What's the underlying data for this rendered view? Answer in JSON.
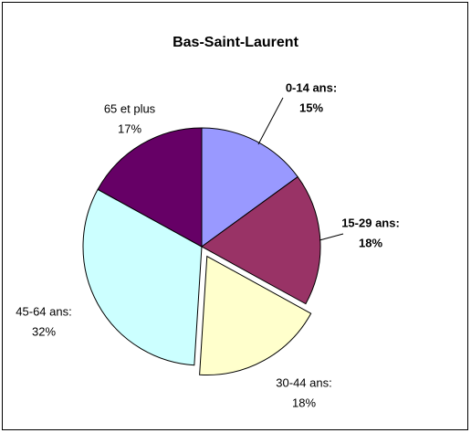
{
  "chart_data": {
    "type": "pie",
    "title": "Bas-Saint-Laurent",
    "categories": [
      "0-14 ans:",
      "15-29 ans:",
      "30-44 ans:",
      "45-64 ans:",
      "65 et plus"
    ],
    "values": [
      15,
      18,
      18,
      32,
      17
    ],
    "value_labels": [
      "15%",
      "18%",
      "18%",
      "32%",
      "17%"
    ],
    "colors": [
      "#9999ff",
      "#993366",
      "#ffffcc",
      "#ccffff",
      "#660066"
    ],
    "exploded": [
      false,
      false,
      true,
      false,
      false
    ],
    "label_bold": [
      true,
      true,
      false,
      false,
      false
    ]
  }
}
